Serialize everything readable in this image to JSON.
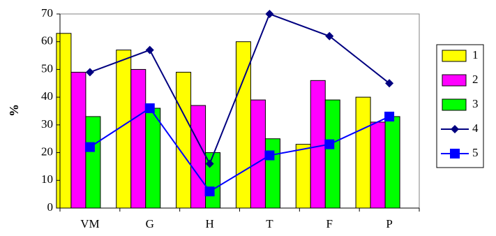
{
  "chart_data": {
    "type": "bar",
    "categories": [
      "VM",
      "G",
      "H",
      "T",
      "F",
      "P"
    ],
    "ylabel": "%",
    "xlabel": "",
    "ylim": [
      0,
      70
    ],
    "yticks": [
      0,
      10,
      20,
      30,
      40,
      50,
      60,
      70
    ],
    "grid": false,
    "legend": "right",
    "series": [
      {
        "name": "1",
        "kind": "bar",
        "color": "#ffff00",
        "values": [
          63,
          57,
          49,
          60,
          23,
          40
        ]
      },
      {
        "name": "2",
        "kind": "bar",
        "color": "#ff00ff",
        "values": [
          49,
          50,
          37,
          39,
          46,
          31
        ]
      },
      {
        "name": "3",
        "kind": "bar",
        "color": "#00ff00",
        "values": [
          33,
          36,
          20,
          25,
          39,
          33
        ]
      },
      {
        "name": "4",
        "kind": "line",
        "marker": "diamond",
        "color": "#000080",
        "values": [
          49,
          57,
          16,
          70,
          62,
          45
        ]
      },
      {
        "name": "5",
        "kind": "line",
        "marker": "square",
        "color": "#0000ff",
        "values": [
          22,
          36,
          6,
          19,
          23,
          33
        ]
      }
    ]
  }
}
